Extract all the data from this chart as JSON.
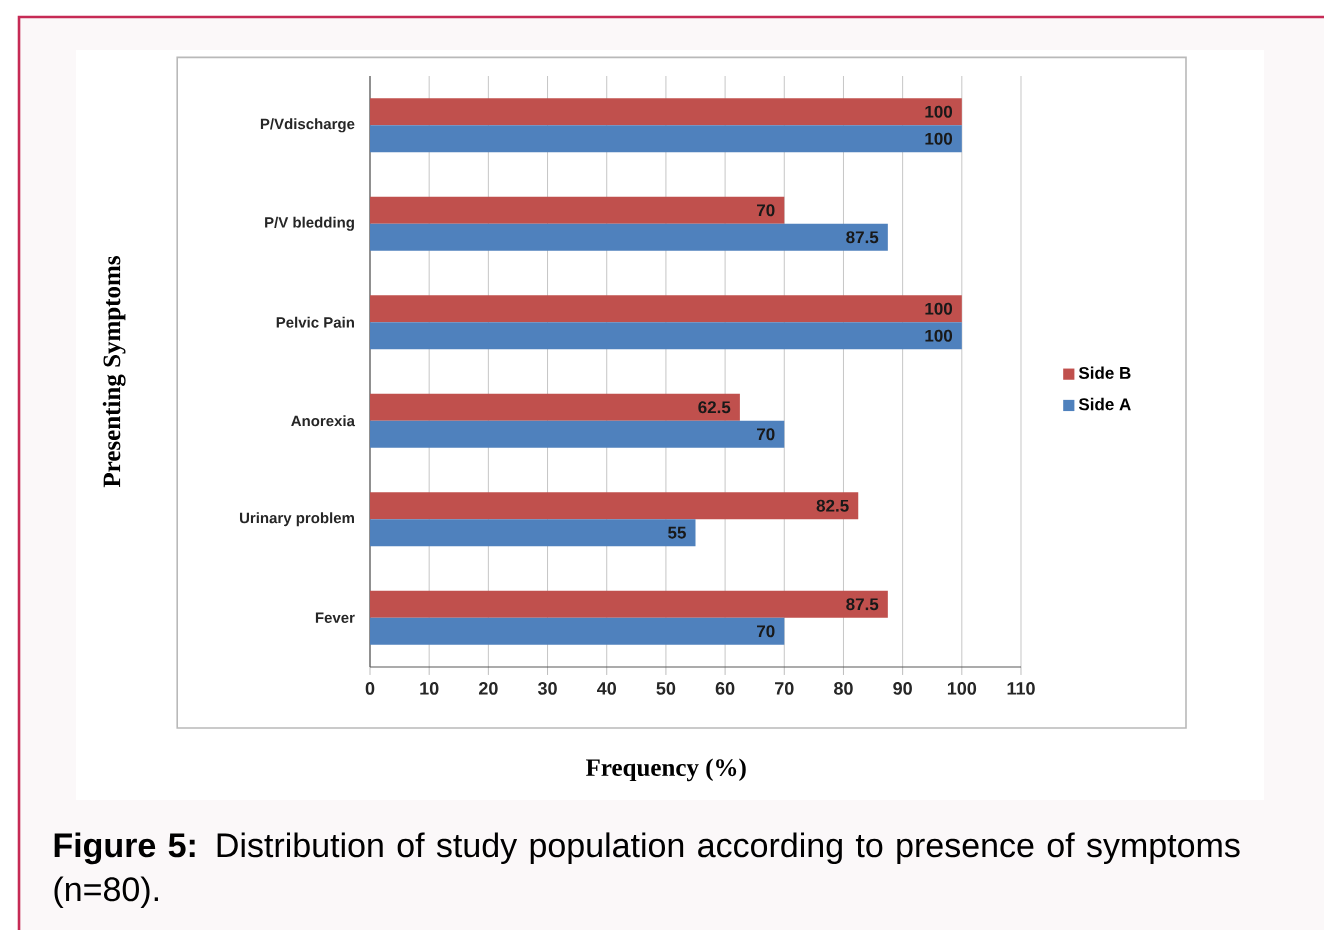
{
  "chart_data": {
    "type": "bar",
    "orientation": "horizontal",
    "xlabel": "Frequency (%)",
    "ylabel": "Presenting Symptoms",
    "categories": [
      "P/Vdischarge",
      "P/V bledding",
      "Pelvic Pain",
      "Anorexia",
      "Urinary problem",
      "Fever"
    ],
    "series": [
      {
        "name": "Side B",
        "color": "#c0504d",
        "values": [
          100,
          70,
          100,
          62.5,
          82.5,
          87.5
        ]
      },
      {
        "name": "Side A",
        "color": "#4f81bd",
        "values": [
          100,
          87.5,
          100,
          70,
          55,
          70
        ]
      }
    ],
    "xlim": [
      0,
      110
    ],
    "xticks": [
      0,
      10,
      20,
      30,
      40,
      50,
      60,
      70,
      80,
      90,
      100,
      110
    ],
    "grid": "x",
    "legend": "right",
    "data_labels": true,
    "annotations": [
      "**Figure 5:** Distribution of study population according to presence of symptoms (n=80)."
    ]
  }
}
